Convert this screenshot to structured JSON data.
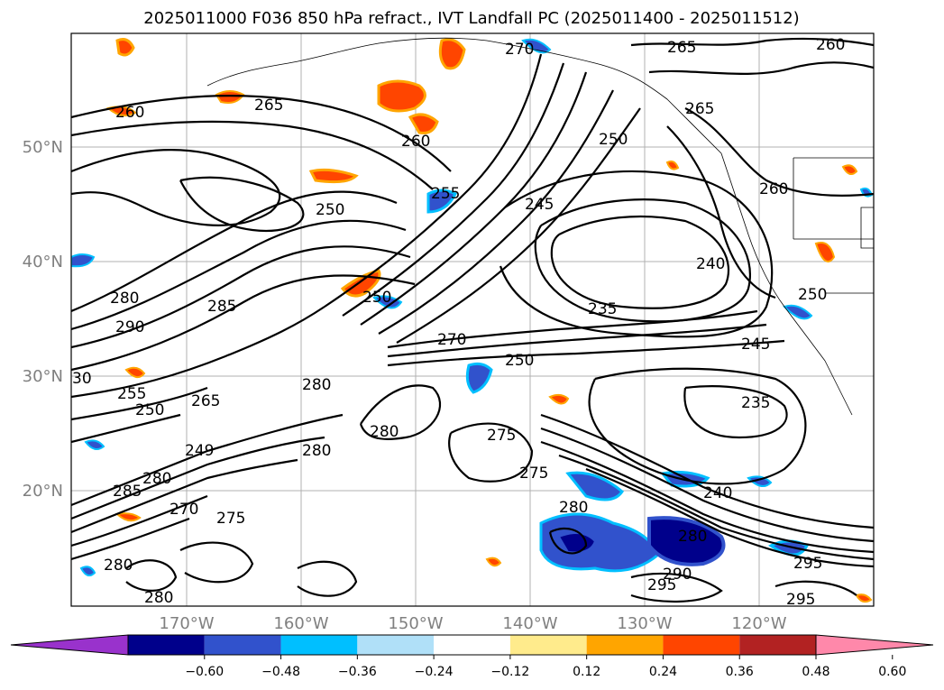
{
  "title": "2025011000 F036 850 hPa refract., IVT Landfall PC (2025011400 - 2025011512)",
  "lat_labels": [
    "50°N",
    "40°N",
    "30°N",
    "20°N"
  ],
  "lon_labels": [
    "170°W",
    "160°W",
    "150°W",
    "140°W",
    "130°W",
    "120°W"
  ],
  "colorbar": {
    "colors": [
      "#9932cc",
      "#00008b",
      "#3152cc",
      "#00bfff",
      "#b0e0f8",
      "#ffffff",
      "#ffeb8c",
      "#ffa500",
      "#ff4500",
      "#b22222",
      "#ff88aa"
    ],
    "tick_labels": [
      "−0.60",
      "−0.48",
      "−0.36",
      "−0.24",
      "−0.12",
      "0.12",
      "0.24",
      "0.36",
      "0.48",
      "0.60"
    ]
  },
  "contour_labels": [
    "270",
    "265",
    "260",
    "265",
    "260",
    "250",
    "255",
    "260",
    "250",
    "245",
    "265",
    "260",
    "240",
    "280",
    "285",
    "250",
    "235",
    "290",
    "270",
    "250",
    "245",
    "30",
    "255",
    "250",
    "265",
    "280",
    "235",
    "280",
    "249",
    "275",
    "280",
    "275",
    "240",
    "280",
    "285",
    "270",
    "275",
    "280",
    "280",
    "295",
    "290",
    "295",
    "295",
    "280",
    "280",
    "250"
  ]
}
